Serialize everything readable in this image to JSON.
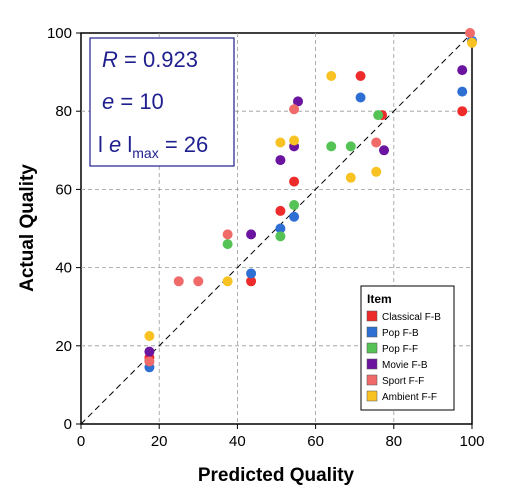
{
  "chart_data": {
    "type": "scatter",
    "xlabel": "Predicted Quality",
    "ylabel": "Actual Quality",
    "xlim": [
      0,
      100
    ],
    "ylim": [
      0,
      100
    ],
    "xticks": [
      "0",
      "20",
      "40",
      "60",
      "80",
      "100"
    ],
    "yticks": [
      "0",
      "20",
      "40",
      "60",
      "80",
      "100"
    ],
    "grid": true,
    "reference_line": "y = x (dashed)",
    "stats": {
      "r_var": "R",
      "r_value": " = 0.923",
      "e_var": "e",
      "e_value": " = 10",
      "emax_pre": "l ",
      "emax_var": "e",
      "emax_mid": " l",
      "emax_sub": "max",
      "emax_value": " = 26"
    },
    "legend_title": "Item",
    "legend_position": "lower-right",
    "series": [
      {
        "name": "Classical F-B",
        "color": "#ee2b2b",
        "points": [
          [
            17.5,
            17
          ],
          [
            43.5,
            36.5
          ],
          [
            51,
            54.5
          ],
          [
            54.5,
            62
          ],
          [
            71.5,
            89
          ],
          [
            77,
            79
          ],
          [
            97.5,
            80
          ]
        ]
      },
      {
        "name": "Pop F-B",
        "color": "#2e6fd4",
        "points": [
          [
            17.5,
            14.5
          ],
          [
            43.5,
            38.5
          ],
          [
            51,
            50
          ],
          [
            54.5,
            53
          ],
          [
            71.5,
            83.5
          ],
          [
            97.5,
            85
          ],
          [
            100,
            98
          ]
        ]
      },
      {
        "name": "Pop F-F",
        "color": "#55c255",
        "points": [
          [
            37.5,
            46
          ],
          [
            51,
            48
          ],
          [
            54.5,
            56
          ],
          [
            64,
            71
          ],
          [
            69,
            71
          ],
          [
            76,
            79
          ]
        ]
      },
      {
        "name": "Movie F-B",
        "color": "#6a14a0",
        "points": [
          [
            17.5,
            18.5
          ],
          [
            43.5,
            48.5
          ],
          [
            51,
            67.5
          ],
          [
            54.5,
            71
          ],
          [
            55.5,
            82.5
          ],
          [
            77.5,
            70
          ],
          [
            97.5,
            90.5
          ]
        ]
      },
      {
        "name": "Sport F-F",
        "color": "#f06a6a",
        "points": [
          [
            17.5,
            16
          ],
          [
            25,
            36.5
          ],
          [
            30,
            36.5
          ],
          [
            37.5,
            48.5
          ],
          [
            54.5,
            80.5
          ],
          [
            75.5,
            72
          ],
          [
            99.5,
            100
          ]
        ]
      },
      {
        "name": "Ambient F-F",
        "color": "#f8c223",
        "points": [
          [
            17.5,
            22.5
          ],
          [
            37.5,
            36.5
          ],
          [
            51,
            72
          ],
          [
            54.5,
            72.5
          ],
          [
            64,
            89
          ],
          [
            69,
            63
          ],
          [
            75.5,
            64.5
          ],
          [
            100,
            97.5
          ]
        ]
      }
    ]
  }
}
